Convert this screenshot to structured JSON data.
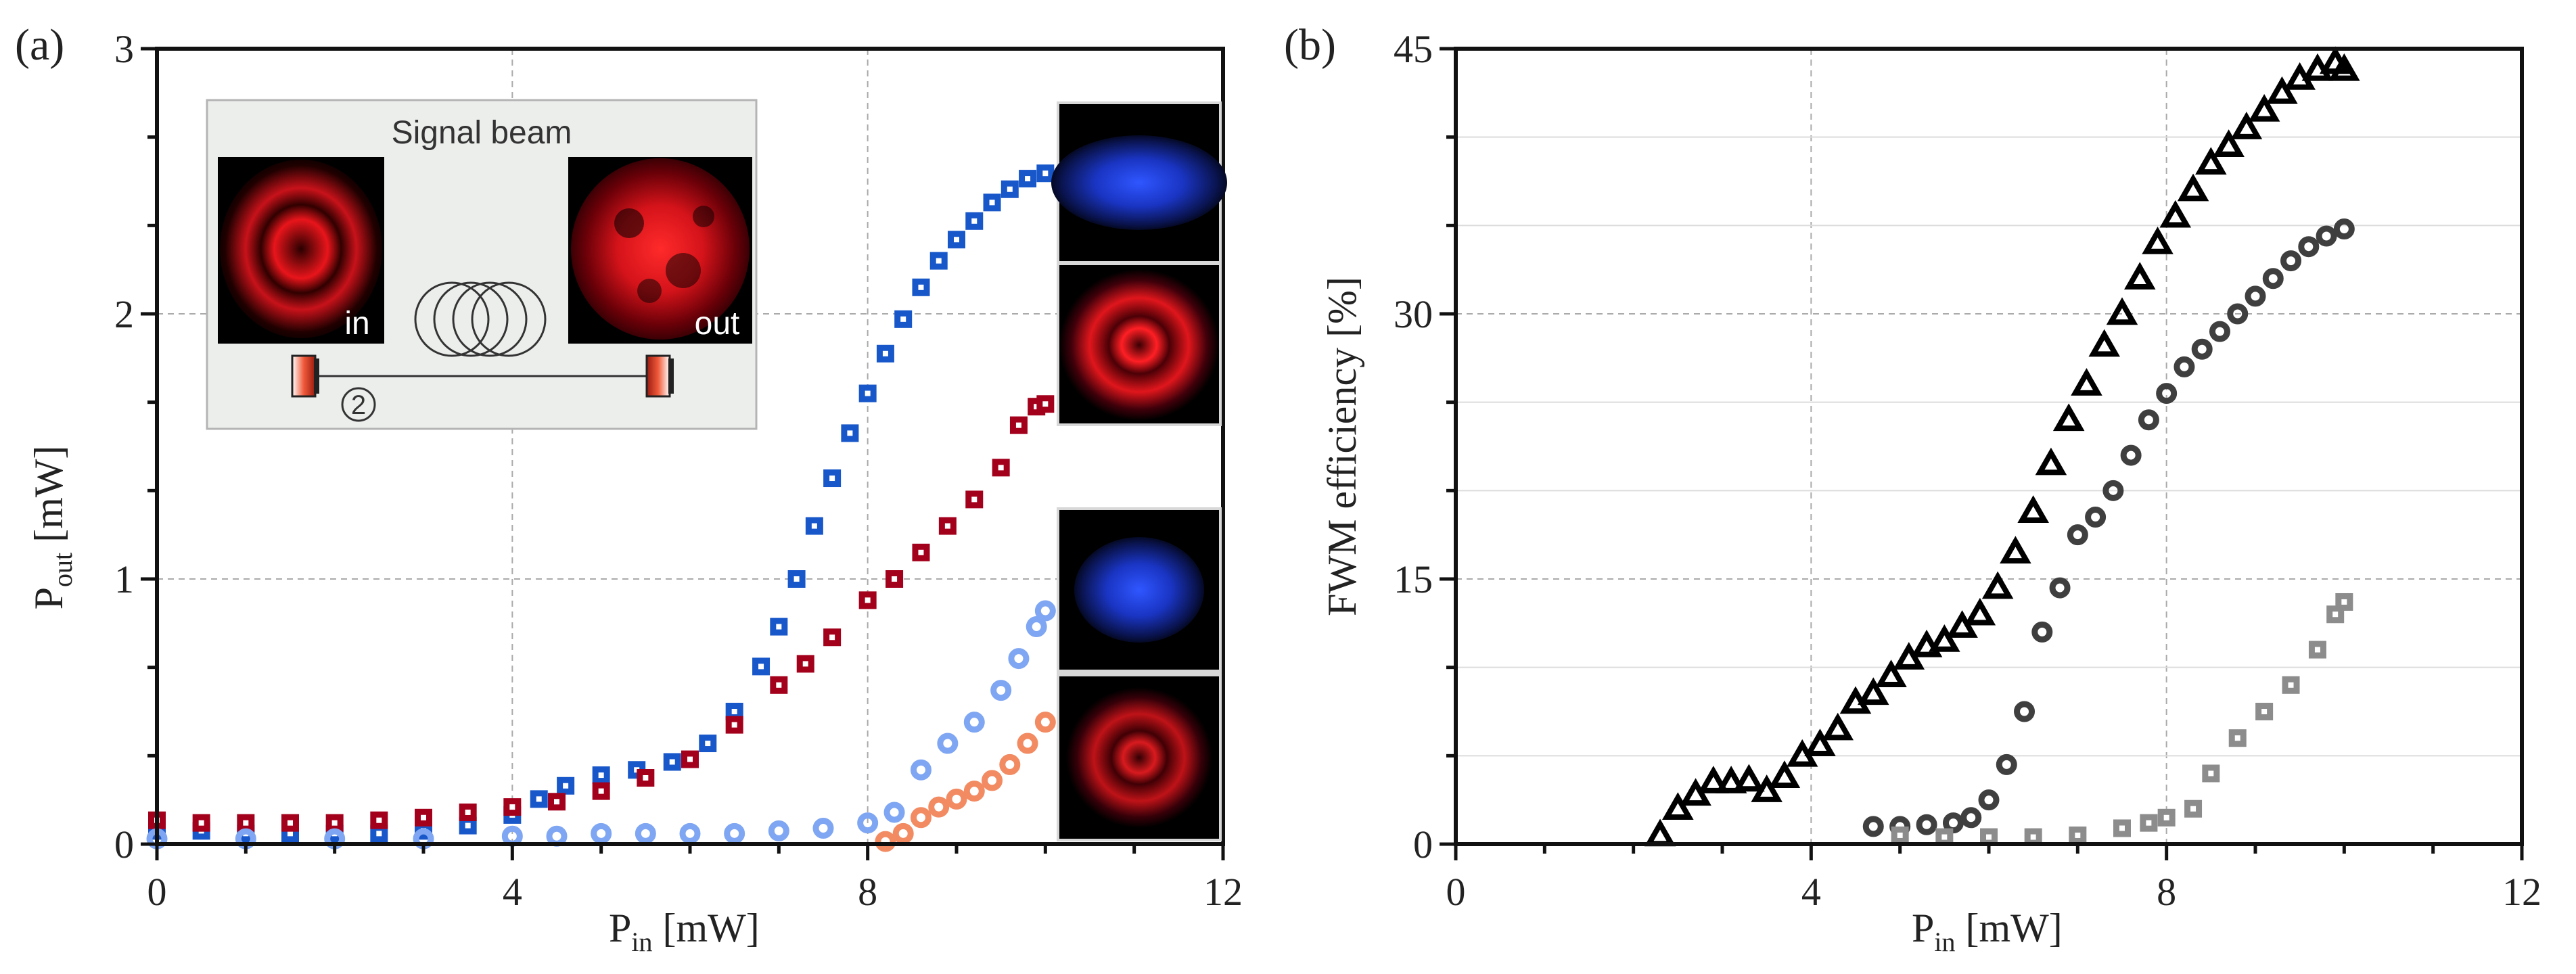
{
  "figure": {
    "panel_a_label": "(a)",
    "panel_b_label": "(b)"
  },
  "inset": {
    "title": "Signal beam",
    "in_label": "in",
    "out_label": "out",
    "fiber_number": "2",
    "colors": {
      "beam_red": "#e8151b",
      "beam_blue": "#1f3fe0",
      "frame_bg": "#eceeec"
    }
  },
  "colors": {
    "dark_blue": "#1857c9",
    "dark_red": "#a3001c",
    "light_blue": "#7fa6f2",
    "salmon": "#f28a62",
    "black": "#000000",
    "dark_gray": "#3f3f3f",
    "gray": "#8c8c8c"
  },
  "chart_data": [
    {
      "type": "scatter",
      "panel": "(a)",
      "title": "",
      "xlabel": "P",
      "xlabel_sub": "in",
      "xlabel_unit": " [mW]",
      "ylabel": "P",
      "ylabel_sub": "out",
      "ylabel_unit": " [mW]",
      "xlim": [
        0,
        12
      ],
      "ylim": [
        0,
        3
      ],
      "xticks": [
        "0",
        "4",
        "8",
        "12"
      ],
      "yticks": [
        "0",
        "1",
        "2",
        "3"
      ],
      "grid": true,
      "series": [
        {
          "name": "dark blue squares",
          "marker": "square",
          "color": "#1857c9",
          "points": [
            [
              0,
              0.05
            ],
            [
              0.5,
              0.05
            ],
            [
              1,
              0.04
            ],
            [
              1.5,
              0.04
            ],
            [
              2,
              0.04
            ],
            [
              2.5,
              0.04
            ],
            [
              3,
              0.05
            ],
            [
              3.5,
              0.07
            ],
            [
              4,
              0.11
            ],
            [
              4.3,
              0.17
            ],
            [
              4.6,
              0.22
            ],
            [
              5,
              0.26
            ],
            [
              5.4,
              0.28
            ],
            [
              5.8,
              0.31
            ],
            [
              6.2,
              0.38
            ],
            [
              6.5,
              0.5
            ],
            [
              6.8,
              0.67
            ],
            [
              7.0,
              0.82
            ],
            [
              7.2,
              1.0
            ],
            [
              7.4,
              1.2
            ],
            [
              7.6,
              1.38
            ],
            [
              7.8,
              1.55
            ],
            [
              8.0,
              1.7
            ],
            [
              8.2,
              1.85
            ],
            [
              8.4,
              1.98
            ],
            [
              8.6,
              2.1
            ],
            [
              8.8,
              2.2
            ],
            [
              9.0,
              2.28
            ],
            [
              9.2,
              2.35
            ],
            [
              9.4,
              2.42
            ],
            [
              9.6,
              2.47
            ],
            [
              9.8,
              2.51
            ],
            [
              10.0,
              2.53
            ]
          ]
        },
        {
          "name": "dark red squares",
          "marker": "square",
          "color": "#a3001c",
          "points": [
            [
              0,
              0.09
            ],
            [
              0.5,
              0.08
            ],
            [
              1,
              0.08
            ],
            [
              1.5,
              0.08
            ],
            [
              2,
              0.08
            ],
            [
              2.5,
              0.09
            ],
            [
              3,
              0.1
            ],
            [
              3.5,
              0.12
            ],
            [
              4,
              0.14
            ],
            [
              4.5,
              0.16
            ],
            [
              5,
              0.2
            ],
            [
              5.5,
              0.25
            ],
            [
              6,
              0.32
            ],
            [
              6.5,
              0.45
            ],
            [
              7,
              0.6
            ],
            [
              7.3,
              0.68
            ],
            [
              7.6,
              0.78
            ],
            [
              8,
              0.92
            ],
            [
              8.3,
              1.0
            ],
            [
              8.6,
              1.1
            ],
            [
              8.9,
              1.2
            ],
            [
              9.2,
              1.3
            ],
            [
              9.5,
              1.42
            ],
            [
              9.7,
              1.58
            ],
            [
              9.9,
              1.65
            ],
            [
              10.0,
              1.66
            ]
          ]
        },
        {
          "name": "light blue circles",
          "marker": "circle",
          "color": "#7fa6f2",
          "points": [
            [
              0,
              0.02
            ],
            [
              1,
              0.02
            ],
            [
              2,
              0.02
            ],
            [
              3,
              0.02
            ],
            [
              4,
              0.03
            ],
            [
              4.5,
              0.03
            ],
            [
              5,
              0.04
            ],
            [
              5.5,
              0.04
            ],
            [
              6,
              0.04
            ],
            [
              6.5,
              0.04
            ],
            [
              7,
              0.05
            ],
            [
              7.5,
              0.06
            ],
            [
              8,
              0.08
            ],
            [
              8.3,
              0.12
            ],
            [
              8.6,
              0.28
            ],
            [
              8.9,
              0.38
            ],
            [
              9.2,
              0.46
            ],
            [
              9.5,
              0.58
            ],
            [
              9.7,
              0.7
            ],
            [
              9.9,
              0.82
            ],
            [
              10.0,
              0.88
            ]
          ]
        },
        {
          "name": "salmon circles",
          "marker": "circle",
          "color": "#f28a62",
          "points": [
            [
              8.2,
              0.01
            ],
            [
              8.4,
              0.04
            ],
            [
              8.6,
              0.1
            ],
            [
              8.8,
              0.14
            ],
            [
              9.0,
              0.17
            ],
            [
              9.2,
              0.2
            ],
            [
              9.4,
              0.24
            ],
            [
              9.6,
              0.3
            ],
            [
              9.8,
              0.38
            ],
            [
              10.0,
              0.46
            ]
          ]
        }
      ]
    },
    {
      "type": "scatter",
      "panel": "(b)",
      "title": "",
      "xlabel": "P",
      "xlabel_sub": "in",
      "xlabel_unit": " [mW]",
      "ylabel": "FWM efficiency [%]",
      "xlim": [
        0,
        12
      ],
      "ylim": [
        0,
        45
      ],
      "xticks": [
        "0",
        "4",
        "8",
        "12"
      ],
      "yticks": [
        "0",
        "15",
        "30",
        "45"
      ],
      "grid": true,
      "series": [
        {
          "name": "black triangles",
          "marker": "triangle",
          "color": "#000000",
          "points": [
            [
              2.3,
              0.5
            ],
            [
              2.5,
              2
            ],
            [
              2.7,
              2.8
            ],
            [
              2.9,
              3.5
            ],
            [
              3.1,
              3.5
            ],
            [
              3.3,
              3.6
            ],
            [
              3.5,
              3
            ],
            [
              3.7,
              3.8
            ],
            [
              3.9,
              5
            ],
            [
              4.1,
              5.6
            ],
            [
              4.3,
              6.5
            ],
            [
              4.5,
              8
            ],
            [
              4.7,
              8.5
            ],
            [
              4.9,
              9.5
            ],
            [
              5.1,
              10.5
            ],
            [
              5.3,
              11.2
            ],
            [
              5.5,
              11.5
            ],
            [
              5.7,
              12.3
            ],
            [
              5.9,
              13
            ],
            [
              6.1,
              14.5
            ],
            [
              6.3,
              16.5
            ],
            [
              6.5,
              18.8
            ],
            [
              6.7,
              21.5
            ],
            [
              6.9,
              24
            ],
            [
              7.1,
              26
            ],
            [
              7.3,
              28.2
            ],
            [
              7.5,
              30
            ],
            [
              7.7,
              32
            ],
            [
              7.9,
              34
            ],
            [
              8.1,
              35.5
            ],
            [
              8.3,
              37
            ],
            [
              8.5,
              38.5
            ],
            [
              8.7,
              39.5
            ],
            [
              8.9,
              40.5
            ],
            [
              9.1,
              41.5
            ],
            [
              9.3,
              42.5
            ],
            [
              9.5,
              43.3
            ],
            [
              9.7,
              43.8
            ],
            [
              9.9,
              44.2
            ],
            [
              10.0,
              43.8
            ]
          ]
        },
        {
          "name": "dark gray circles",
          "marker": "circle",
          "color": "#3f3f3f",
          "points": [
            [
              4.7,
              1
            ],
            [
              5.0,
              1
            ],
            [
              5.3,
              1.1
            ],
            [
              5.6,
              1.2
            ],
            [
              5.8,
              1.5
            ],
            [
              6.0,
              2.5
            ],
            [
              6.2,
              4.5
            ],
            [
              6.4,
              7.5
            ],
            [
              6.6,
              12
            ],
            [
              6.8,
              14.5
            ],
            [
              7.0,
              17.5
            ],
            [
              7.2,
              18.5
            ],
            [
              7.4,
              20
            ],
            [
              7.6,
              22
            ],
            [
              7.8,
              24
            ],
            [
              8.0,
              25.5
            ],
            [
              8.2,
              27
            ],
            [
              8.4,
              28
            ],
            [
              8.6,
              29
            ],
            [
              8.8,
              30
            ],
            [
              9.0,
              31
            ],
            [
              9.2,
              32
            ],
            [
              9.4,
              33
            ],
            [
              9.6,
              33.8
            ],
            [
              9.8,
              34.4
            ],
            [
              10.0,
              34.8
            ]
          ]
        },
        {
          "name": "gray squares",
          "marker": "square",
          "color": "#8c8c8c",
          "points": [
            [
              5.0,
              0.5
            ],
            [
              5.5,
              0.4
            ],
            [
              6.0,
              0.4
            ],
            [
              6.5,
              0.4
            ],
            [
              7.0,
              0.5
            ],
            [
              7.5,
              0.9
            ],
            [
              7.8,
              1.2
            ],
            [
              8.0,
              1.5
            ],
            [
              8.3,
              2
            ],
            [
              8.5,
              4
            ],
            [
              8.8,
              6
            ],
            [
              9.1,
              7.5
            ],
            [
              9.4,
              9
            ],
            [
              9.7,
              11
            ],
            [
              9.9,
              13
            ],
            [
              10.0,
              13.7
            ]
          ]
        }
      ]
    }
  ]
}
